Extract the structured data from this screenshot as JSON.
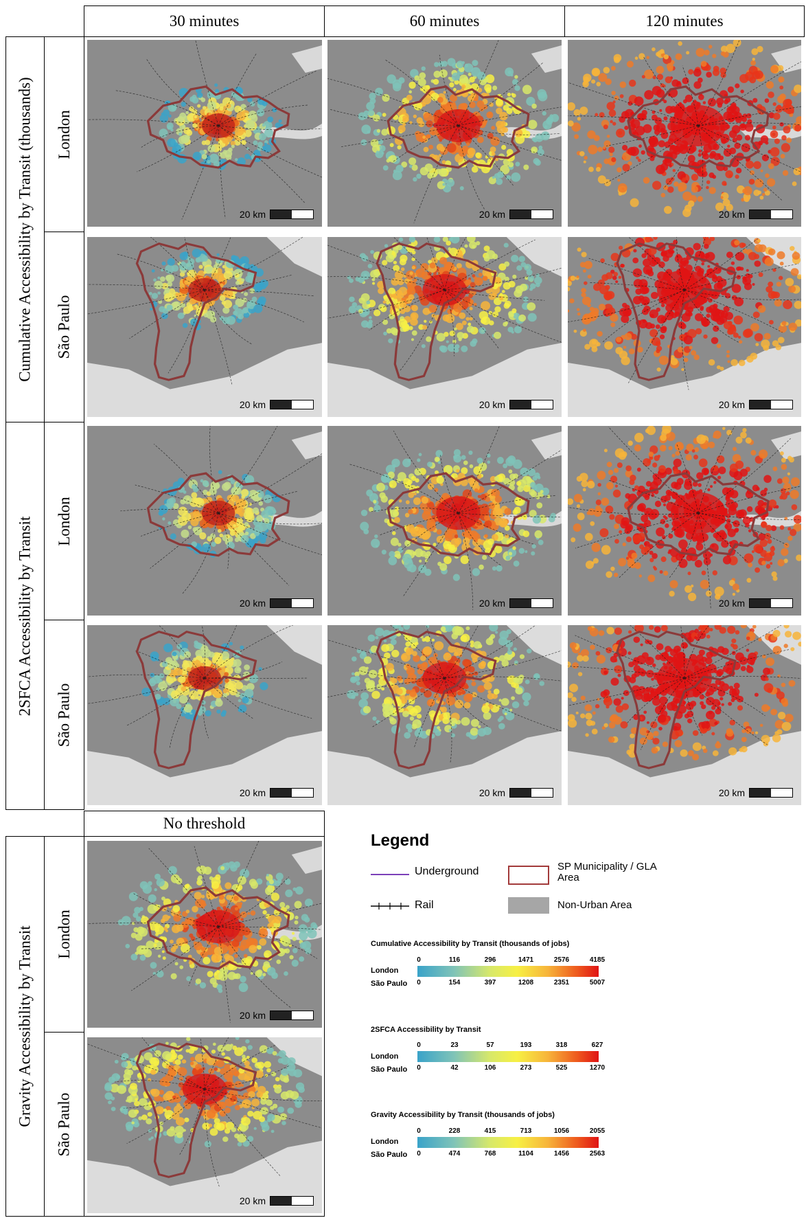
{
  "columns": [
    "30 minutes",
    "60 minutes",
    "120 minutes"
  ],
  "row_groups": [
    "Cumulative Accessibility by Transit (thousands)",
    "2SFCA Accessibility by Transit",
    "Gravity Accessibility by Transit"
  ],
  "cities": [
    "London",
    "São Paulo"
  ],
  "gravity_column": "No threshold",
  "scale_label": "20 km",
  "colors": {
    "low": "#3aa3c9",
    "mid": "#f7f044",
    "high": "#e01414",
    "boundary": "#8b3a3a",
    "non_urban": "#8c8c8c",
    "background": "#e6e6e6"
  },
  "legend": {
    "title": "Legend",
    "underground": "Underground",
    "rail": "Rail",
    "boundary": "SP Municipality / GLA Area",
    "non_urban": "Non-Urban Area",
    "scales": [
      {
        "title": "Cumulative Accessibility by Transit (thousands of jobs)",
        "london_label": "London",
        "sp_label": "São Paulo",
        "london_ticks": [
          "0",
          "116",
          "296",
          "1471",
          "2576",
          "4185"
        ],
        "sp_ticks": [
          "0",
          "154",
          "397",
          "1208",
          "2351",
          "5007"
        ]
      },
      {
        "title": "2SFCA Accessibility by Transit",
        "london_label": "London",
        "sp_label": "São Paulo",
        "london_ticks": [
          "0",
          "23",
          "57",
          "193",
          "318",
          "627"
        ],
        "sp_ticks": [
          "0",
          "42",
          "106",
          "273",
          "525",
          "1270"
        ]
      },
      {
        "title": "Gravity Accessibility by Transit (thousands of jobs)",
        "london_label": "London",
        "sp_label": "São Paulo",
        "london_ticks": [
          "0",
          "228",
          "415",
          "713",
          "1056",
          "2055"
        ],
        "sp_ticks": [
          "0",
          "474",
          "768",
          "1104",
          "1456",
          "2563"
        ]
      }
    ]
  }
}
